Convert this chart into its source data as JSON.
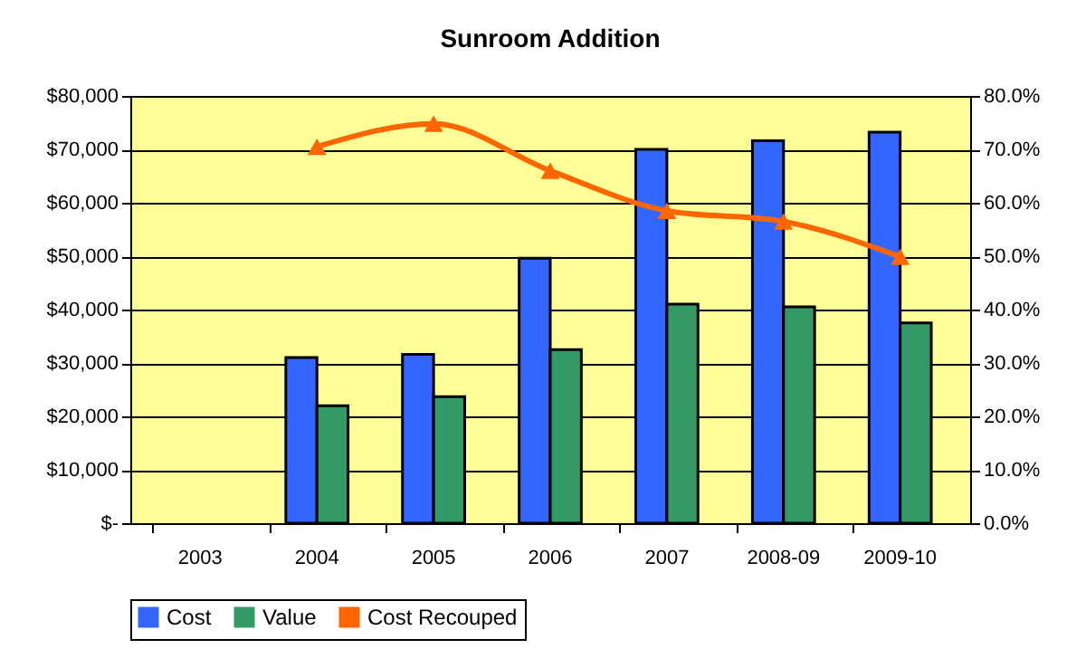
{
  "chart_data": {
    "type": "bar",
    "title": "Sunroom Addition",
    "categories": [
      "2003",
      "2004",
      "2005",
      "2006",
      "2007",
      "2008-09",
      "2009-10"
    ],
    "series": [
      {
        "name": "Cost",
        "color": "#3366ff",
        "values": [
          null,
          31000,
          31600,
          49600,
          70000,
          71600,
          73200
        ]
      },
      {
        "name": "Value",
        "color": "#339966",
        "values": [
          null,
          22000,
          23700,
          32500,
          41000,
          40500,
          37500
        ]
      },
      {
        "name": "Cost Recouped",
        "color": "#ff6600",
        "type": "line",
        "axis": "y2",
        "marker": "triangle",
        "values": [
          null,
          70.5,
          74.8,
          66.0,
          58.5,
          56.5,
          49.9
        ]
      }
    ],
    "ylim": [
      0,
      80000
    ],
    "yticks": [
      {
        "value": 0,
        "label": "$-"
      },
      {
        "value": 10000,
        "label": "$10,000"
      },
      {
        "value": 20000,
        "label": "$20,000"
      },
      {
        "value": 30000,
        "label": "$30,000"
      },
      {
        "value": 40000,
        "label": "$40,000"
      },
      {
        "value": 50000,
        "label": "$50,000"
      },
      {
        "value": 60000,
        "label": "$60,000"
      },
      {
        "value": 70000,
        "label": "$70,000"
      },
      {
        "value": 80000,
        "label": "$80,000"
      }
    ],
    "y2lim": [
      0,
      80
    ],
    "y2ticks": [
      {
        "value": 0,
        "label": "0.0%"
      },
      {
        "value": 10,
        "label": "10.0%"
      },
      {
        "value": 20,
        "label": "20.0%"
      },
      {
        "value": 30,
        "label": "30.0%"
      },
      {
        "value": 40,
        "label": "40.0%"
      },
      {
        "value": 50,
        "label": "50.0%"
      },
      {
        "value": 60,
        "label": "60.0%"
      },
      {
        "value": 70,
        "label": "70.0%"
      },
      {
        "value": 80,
        "label": "80.0%"
      }
    ],
    "grid": "y",
    "legend": "bottom"
  }
}
